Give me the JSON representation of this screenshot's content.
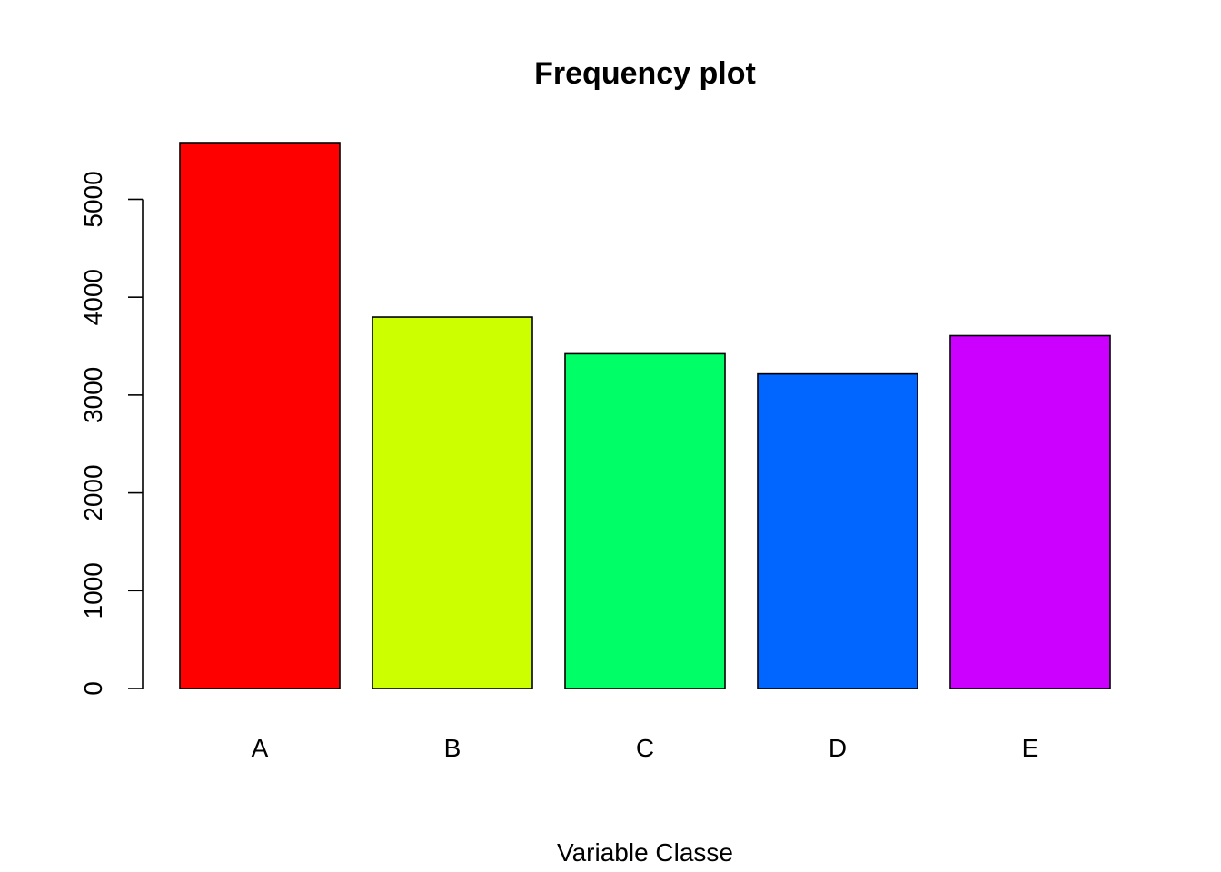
{
  "chart_data": {
    "type": "bar",
    "title": "Frequency plot",
    "xlabel": "Variable Classe",
    "ylabel": "",
    "categories": [
      "A",
      "B",
      "C",
      "D",
      "E"
    ],
    "values": [
      5580,
      3797,
      3422,
      3216,
      3607
    ],
    "colors": [
      "#FF0000",
      "#CCFF00",
      "#00FF66",
      "#0066FF",
      "#CC00FF"
    ],
    "ylim": [
      0,
      5580
    ],
    "yticks": [
      0,
      1000,
      2000,
      3000,
      4000,
      5000
    ],
    "ytick_labels": [
      "0",
      "1000",
      "2000",
      "3000",
      "4000",
      "5000"
    ],
    "grid": false,
    "legend": "none"
  }
}
